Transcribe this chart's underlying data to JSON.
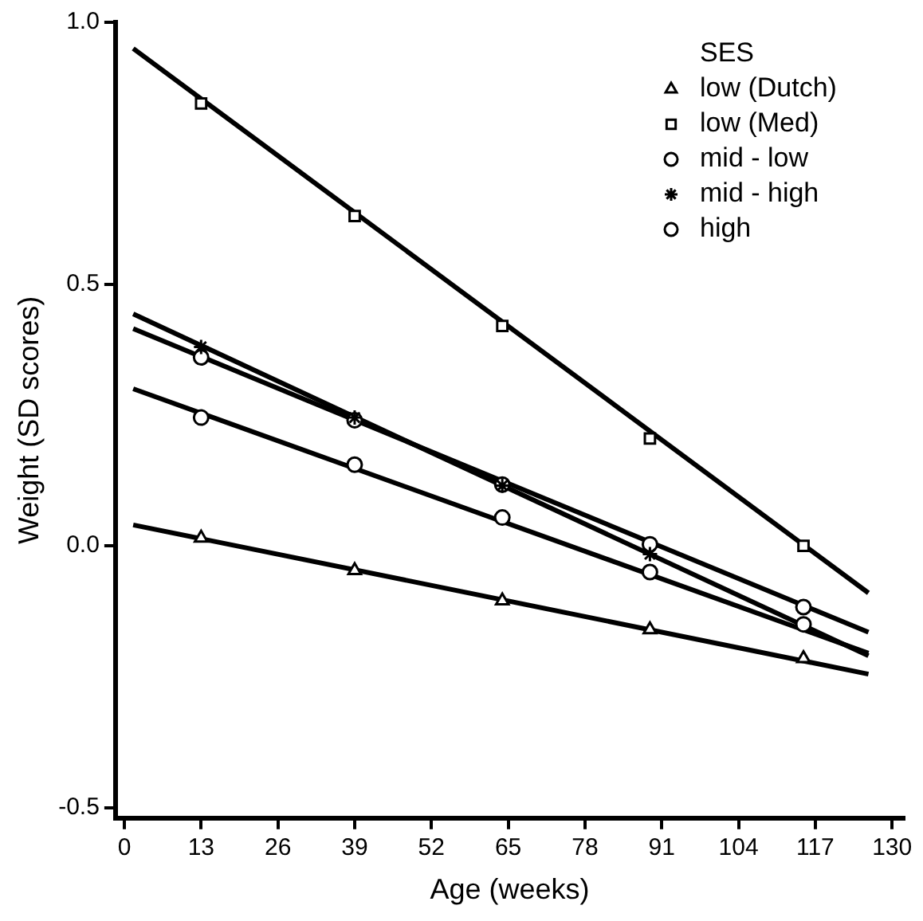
{
  "chart_data": {
    "type": "scatter",
    "xlabel": "Age (weeks)",
    "ylabel": "Weight (SD scores)",
    "legend_title": "SES",
    "legend": "top right",
    "xlim": [
      -1.5,
      132
    ],
    "xticks": [
      0,
      13,
      26,
      39,
      52,
      65,
      78,
      91,
      104,
      117,
      130
    ],
    "ylim": [
      -0.52,
      1.0
    ],
    "yticks": [
      {
        "value": -0.5,
        "label": "-0.5"
      },
      {
        "value": 0,
        "label": "0.0"
      },
      {
        "value": 0.5,
        "label": "0.5"
      },
      {
        "value": 1.0,
        "label": "1.0"
      }
    ],
    "series": [
      {
        "name": "low (Dutch)",
        "marker": "triangle",
        "color": "#000000",
        "x": [
          13,
          39,
          64,
          89,
          115
        ],
        "values": [
          0.015,
          -0.047,
          -0.105,
          -0.16,
          -0.215
        ]
      },
      {
        "name": "low (Med)",
        "marker": "square",
        "color": "#000000",
        "x": [
          13,
          39,
          64,
          89,
          115
        ],
        "values": [
          0.845,
          0.63,
          0.42,
          0.205,
          0.0
        ]
      },
      {
        "name": "mid - low",
        "marker": "circle",
        "color": "#000000",
        "x": [
          13,
          39,
          64,
          89,
          115
        ],
        "values": [
          0.245,
          0.155,
          0.054,
          -0.05,
          -0.15
        ]
      },
      {
        "name": "mid - high",
        "marker": "cross",
        "color": "#000000",
        "x": [
          13,
          39,
          64,
          89
        ],
        "values": [
          0.38,
          0.245,
          0.115,
          -0.016
        ]
      },
      {
        "name": "high",
        "marker": "circle",
        "color": "#000000",
        "x": [
          13,
          39,
          64,
          89,
          115
        ],
        "values": [
          0.36,
          0.24,
          0.117,
          0.003,
          -0.117
        ]
      },
      {
        "type": "line",
        "marker": "none",
        "color": "#000000",
        "x": [
          1.5,
          126
        ],
        "values": [
          0.04,
          -0.245
        ]
      },
      {
        "type": "line",
        "marker": "none",
        "color": "#000000",
        "x": [
          1.5,
          126
        ],
        "values": [
          0.95,
          -0.09
        ]
      },
      {
        "type": "line",
        "marker": "none",
        "color": "#000000",
        "x": [
          1.5,
          126
        ],
        "values": [
          0.3,
          -0.205
        ]
      },
      {
        "type": "line",
        "marker": "none",
        "color": "#000000",
        "x": [
          1.5,
          126
        ],
        "values": [
          0.443,
          -0.21
        ]
      },
      {
        "type": "line",
        "marker": "none",
        "color": "#000000",
        "x": [
          1.5,
          126
        ],
        "values": [
          0.415,
          -0.165
        ]
      }
    ]
  }
}
